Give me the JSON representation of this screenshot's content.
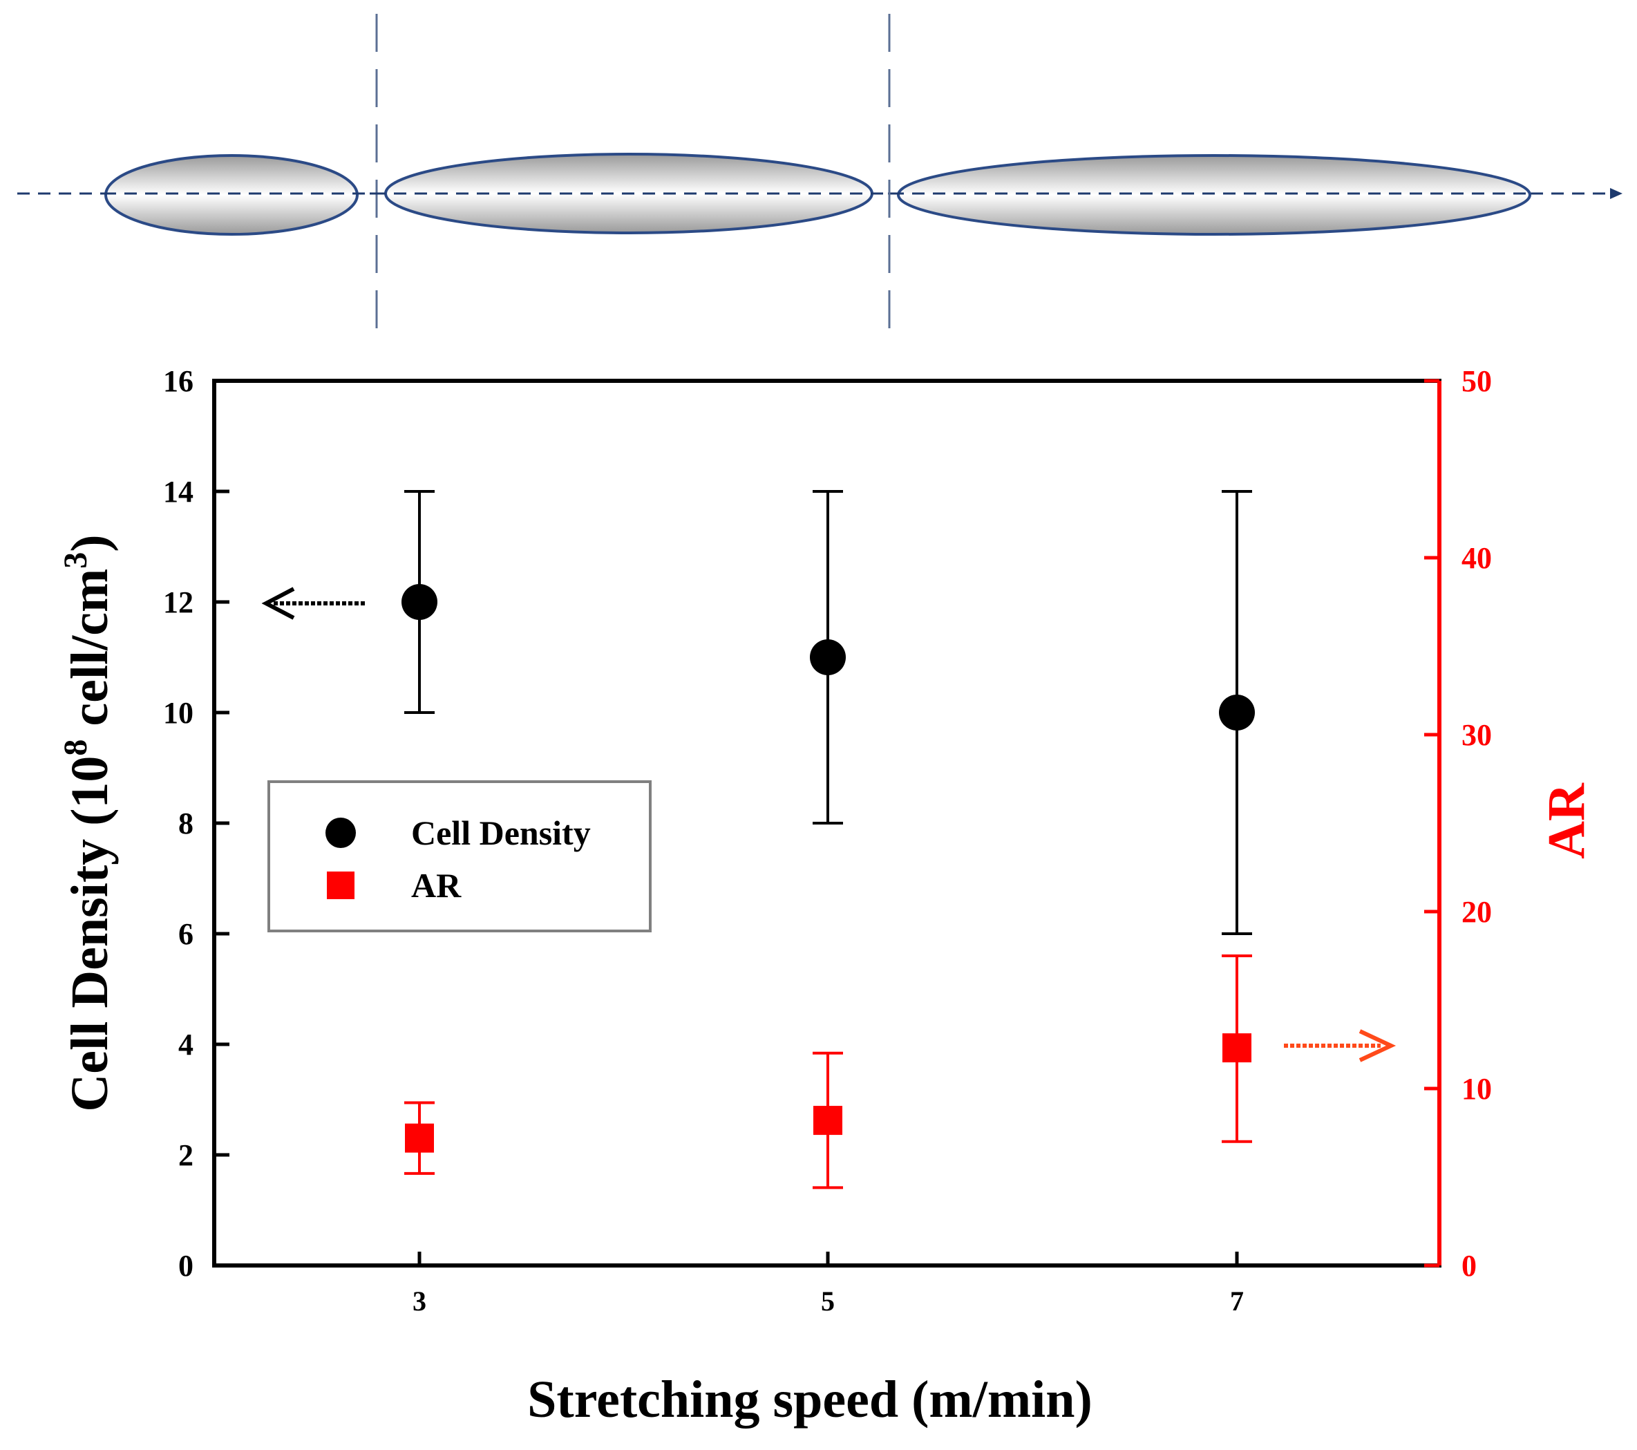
{
  "chart_data": {
    "type": "scatter",
    "title": "",
    "xlabel": "Stretching speed (m/min)",
    "ylabel_parts": {
      "before": "Cell Density (10",
      "sup1": "8",
      "middle": " cell/cm",
      "sup2": "3",
      "after": ")"
    },
    "ylabel_right": "AR",
    "x_ticks": [
      "3",
      "5",
      "7"
    ],
    "ylim": [
      0,
      16
    ],
    "y_ticks": [
      "0",
      "2",
      "4",
      "6",
      "8",
      "10",
      "12",
      "14",
      "16"
    ],
    "ylim_right": [
      0,
      50
    ],
    "y_ticks_right": [
      "0",
      "10",
      "20",
      "30",
      "40",
      "50"
    ],
    "legend_position": "center-left",
    "series": [
      {
        "name": "Cell Density",
        "axis": "left",
        "marker": "circle",
        "color": "#000000",
        "x": [
          3,
          5,
          7
        ],
        "values": [
          12,
          11,
          10
        ],
        "err_low": [
          10,
          8,
          6
        ],
        "err_high": [
          14,
          14,
          14
        ]
      },
      {
        "name": "AR",
        "axis": "right",
        "marker": "square",
        "color": "#ff0000",
        "x": [
          3,
          5,
          7
        ],
        "values": [
          7.2,
          8.2,
          12.3
        ],
        "err_low": [
          5.2,
          4.4,
          7.0
        ],
        "err_high": [
          9.2,
          12.0,
          17.5
        ]
      }
    ],
    "annotations": [
      {
        "type": "arrow",
        "direction": "left",
        "target_axis": "left",
        "color": "#000000"
      },
      {
        "type": "arrow",
        "direction": "right",
        "target_axis": "right",
        "color": "#ff4a1a"
      }
    ],
    "illustration": {
      "shape": "ellipse",
      "count": 3,
      "x_positions": [
        3,
        5,
        7
      ],
      "stretch_axis": "horizontal"
    }
  }
}
